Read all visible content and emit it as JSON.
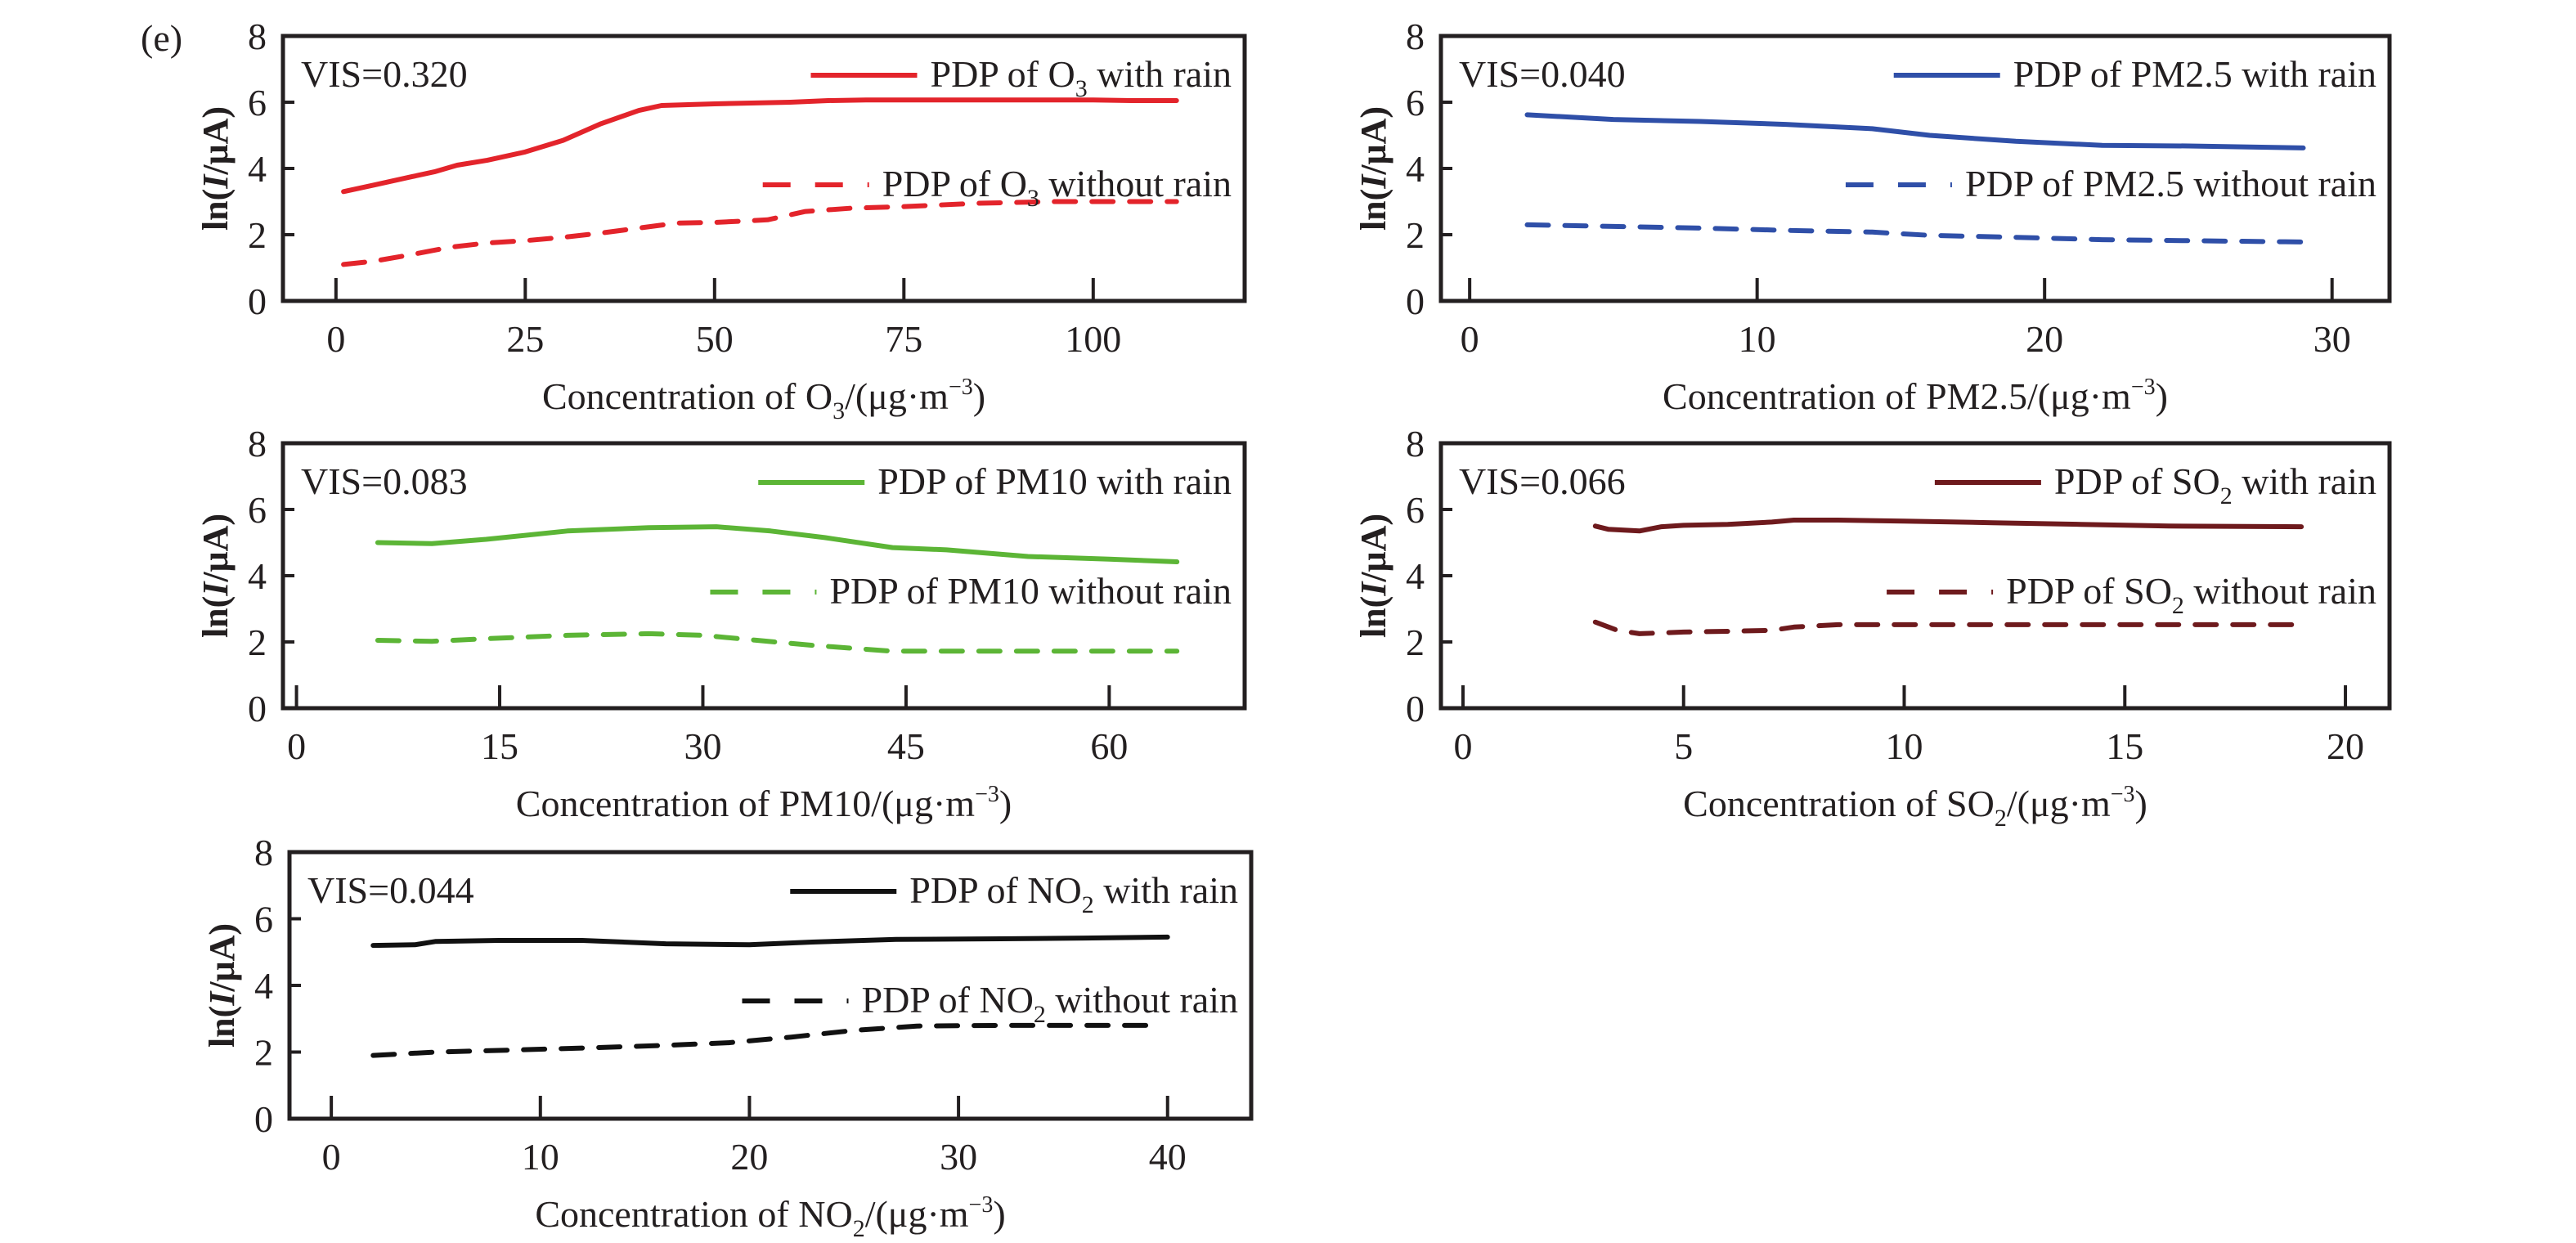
{
  "panel_label": "(e)",
  "chart_data": [
    {
      "type": "line",
      "id": "o3",
      "vis_label": "VIS=0.320",
      "xlabel_main": "Concentration of O",
      "xlabel_sub": "3",
      "xlabel_tail": "/(μg·m",
      "xlabel_sup": "−3",
      "xlabel_close": ")",
      "ylabel_pre": "ln(",
      "ylabel_it": "I",
      "ylabel_post": "/μA)",
      "xlim": [
        -7,
        120
      ],
      "ylim": [
        0,
        8
      ],
      "xticks": [
        0,
        25,
        50,
        75,
        100
      ],
      "yticks": [
        0,
        2,
        4,
        6,
        8
      ],
      "color": "#e3242b",
      "series": [
        {
          "name": "PDP of O3 with rain",
          "legend_pre": "PDP of O",
          "legend_sub": "3",
          "legend_post": " with rain",
          "style": "solid",
          "x": [
            1,
            5,
            10,
            13,
            16,
            20,
            25,
            30,
            35,
            40,
            43,
            50,
            60,
            65,
            70,
            80,
            90,
            100,
            105,
            111
          ],
          "y": [
            3.3,
            3.5,
            3.75,
            3.9,
            4.1,
            4.25,
            4.5,
            4.85,
            5.35,
            5.75,
            5.9,
            5.95,
            6.0,
            6.05,
            6.07,
            6.07,
            6.07,
            6.07,
            6.05,
            6.05
          ]
        },
        {
          "name": "PDP of O3 without rain",
          "legend_pre": "PDP of O",
          "legend_sub": "3",
          "legend_post": " without rain",
          "style": "dashed",
          "x": [
            1,
            5,
            10,
            15,
            20,
            25,
            30,
            35,
            40,
            45,
            50,
            57,
            62,
            68,
            75,
            85,
            95,
            105,
            111
          ],
          "y": [
            1.1,
            1.2,
            1.4,
            1.62,
            1.75,
            1.82,
            1.92,
            2.05,
            2.2,
            2.35,
            2.37,
            2.45,
            2.7,
            2.8,
            2.85,
            2.95,
            3.0,
            3.0,
            3.0
          ]
        }
      ]
    },
    {
      "type": "line",
      "id": "pm25",
      "vis_label": "VIS=0.040",
      "xlabel_main": "Concentration of PM2.5",
      "xlabel_sub": "",
      "xlabel_tail": "/(μg·m",
      "xlabel_sup": "−3",
      "xlabel_close": ")",
      "ylabel_pre": "ln(",
      "ylabel_it": "I",
      "ylabel_post": "/μA)",
      "xlim": [
        -1,
        32
      ],
      "ylim": [
        0,
        8
      ],
      "xticks": [
        0,
        10,
        20,
        30
      ],
      "yticks": [
        0,
        2,
        4,
        6,
        8
      ],
      "color": "#2f4fa8",
      "series": [
        {
          "name": "PDP of PM2.5 with rain",
          "legend_pre": "PDP of PM2.5",
          "legend_sub": "",
          "legend_post": " with rain",
          "style": "solid",
          "x": [
            2,
            5,
            8,
            11,
            14,
            16,
            19,
            22,
            25,
            29
          ],
          "y": [
            5.62,
            5.48,
            5.42,
            5.33,
            5.2,
            5.0,
            4.82,
            4.7,
            4.68,
            4.62
          ]
        },
        {
          "name": "PDP of PM2.5 without rain",
          "legend_pre": "PDP of PM2.5",
          "legend_sub": "",
          "legend_post": " without rain",
          "style": "dashed",
          "x": [
            2,
            5,
            8,
            11,
            14,
            16,
            19,
            22,
            25,
            29
          ],
          "y": [
            2.3,
            2.25,
            2.2,
            2.13,
            2.08,
            1.98,
            1.92,
            1.85,
            1.82,
            1.78
          ]
        }
      ]
    },
    {
      "type": "line",
      "id": "pm10",
      "vis_label": "VIS=0.083",
      "xlabel_main": "Concentration of PM10",
      "xlabel_sub": "",
      "xlabel_tail": "/(μg·m",
      "xlabel_sup": "−3",
      "xlabel_close": ")",
      "ylabel_pre": "ln(",
      "ylabel_it": "I",
      "ylabel_post": "/μA)",
      "xlim": [
        -1,
        70
      ],
      "ylim": [
        0,
        8
      ],
      "xticks": [
        0,
        15,
        30,
        45,
        60
      ],
      "yticks": [
        0,
        2,
        4,
        6,
        8
      ],
      "color": "#5cb536",
      "series": [
        {
          "name": "PDP of PM10 with rain",
          "legend_pre": "PDP of PM10",
          "legend_sub": "",
          "legend_post": " with rain",
          "style": "solid",
          "x": [
            6,
            10,
            14,
            20,
            26,
            31,
            35,
            39,
            44,
            48,
            54,
            60,
            65
          ],
          "y": [
            5.0,
            4.97,
            5.1,
            5.35,
            5.45,
            5.48,
            5.35,
            5.15,
            4.85,
            4.78,
            4.58,
            4.5,
            4.42
          ]
        },
        {
          "name": "PDP of PM10 without rain",
          "legend_pre": "PDP of PM10",
          "legend_sub": "",
          "legend_post": " without rain",
          "style": "dashed",
          "x": [
            6,
            10,
            14,
            20,
            26,
            30,
            34,
            38,
            42,
            44,
            50,
            56,
            65
          ],
          "y": [
            2.05,
            2.02,
            2.1,
            2.2,
            2.25,
            2.2,
            2.05,
            1.9,
            1.78,
            1.72,
            1.72,
            1.72,
            1.72
          ]
        }
      ]
    },
    {
      "type": "line",
      "id": "so2",
      "vis_label": "VIS=0.066",
      "xlabel_main": "Concentration of SO",
      "xlabel_sub": "2",
      "xlabel_tail": "/(μg·m",
      "xlabel_sup": "−3",
      "xlabel_close": ")",
      "ylabel_pre": "ln(",
      "ylabel_it": "I",
      "ylabel_post": "/μA)",
      "xlim": [
        -0.5,
        21
      ],
      "ylim": [
        0,
        8
      ],
      "xticks": [
        0,
        5,
        10,
        15,
        20
      ],
      "yticks": [
        0,
        2,
        4,
        6,
        8
      ],
      "color": "#6e1a1d",
      "series": [
        {
          "name": "PDP of SO2 with rain",
          "legend_pre": "PDP of SO",
          "legend_sub": "2",
          "legend_post": " with rain",
          "style": "solid",
          "x": [
            3,
            3.3,
            4,
            4.5,
            5,
            6,
            7,
            7.5,
            8.5,
            10,
            12,
            14,
            16,
            19
          ],
          "y": [
            5.5,
            5.4,
            5.35,
            5.48,
            5.52,
            5.55,
            5.62,
            5.68,
            5.68,
            5.65,
            5.6,
            5.55,
            5.5,
            5.48
          ]
        },
        {
          "name": "PDP of SO2 without rain",
          "legend_pre": "PDP of SO",
          "legend_sub": "2",
          "legend_post": " without rain",
          "style": "dashed",
          "x": [
            3,
            3.5,
            4,
            5,
            6,
            7,
            7.5,
            8.5,
            10,
            12,
            14,
            16,
            19
          ],
          "y": [
            2.6,
            2.35,
            2.25,
            2.3,
            2.32,
            2.35,
            2.45,
            2.52,
            2.52,
            2.52,
            2.52,
            2.52,
            2.52
          ]
        }
      ]
    },
    {
      "type": "line",
      "id": "no2",
      "vis_label": "VIS=0.044",
      "xlabel_main": "Concentration of NO",
      "xlabel_sub": "2",
      "xlabel_tail": "/(μg·m",
      "xlabel_sup": "−3",
      "xlabel_close": ")",
      "ylabel_pre": "ln(",
      "ylabel_it": "I",
      "ylabel_post": "/μA)",
      "xlim": [
        -2,
        44
      ],
      "ylim": [
        0,
        8
      ],
      "xticks": [
        0,
        10,
        20,
        30,
        40
      ],
      "yticks": [
        0,
        2,
        4,
        6,
        8
      ],
      "color": "#111111",
      "series": [
        {
          "name": "PDP of NO2 with rain",
          "legend_pre": "PDP of NO",
          "legend_sub": "2",
          "legend_post": " with rain",
          "style": "solid",
          "x": [
            2,
            4,
            5,
            8,
            12,
            16,
            20,
            23,
            27,
            32,
            36,
            40
          ],
          "y": [
            5.2,
            5.22,
            5.32,
            5.35,
            5.35,
            5.25,
            5.22,
            5.3,
            5.38,
            5.4,
            5.42,
            5.45
          ]
        },
        {
          "name": "PDP of NO2 without rain",
          "legend_pre": "PDP of NO",
          "legend_sub": "2",
          "legend_post": " without rain",
          "style": "dashed",
          "x": [
            2,
            5,
            8,
            12,
            16,
            19,
            22,
            25,
            28,
            32,
            36,
            39
          ],
          "y": [
            1.9,
            2.0,
            2.05,
            2.12,
            2.2,
            2.28,
            2.45,
            2.65,
            2.78,
            2.8,
            2.8,
            2.8
          ]
        }
      ]
    }
  ]
}
